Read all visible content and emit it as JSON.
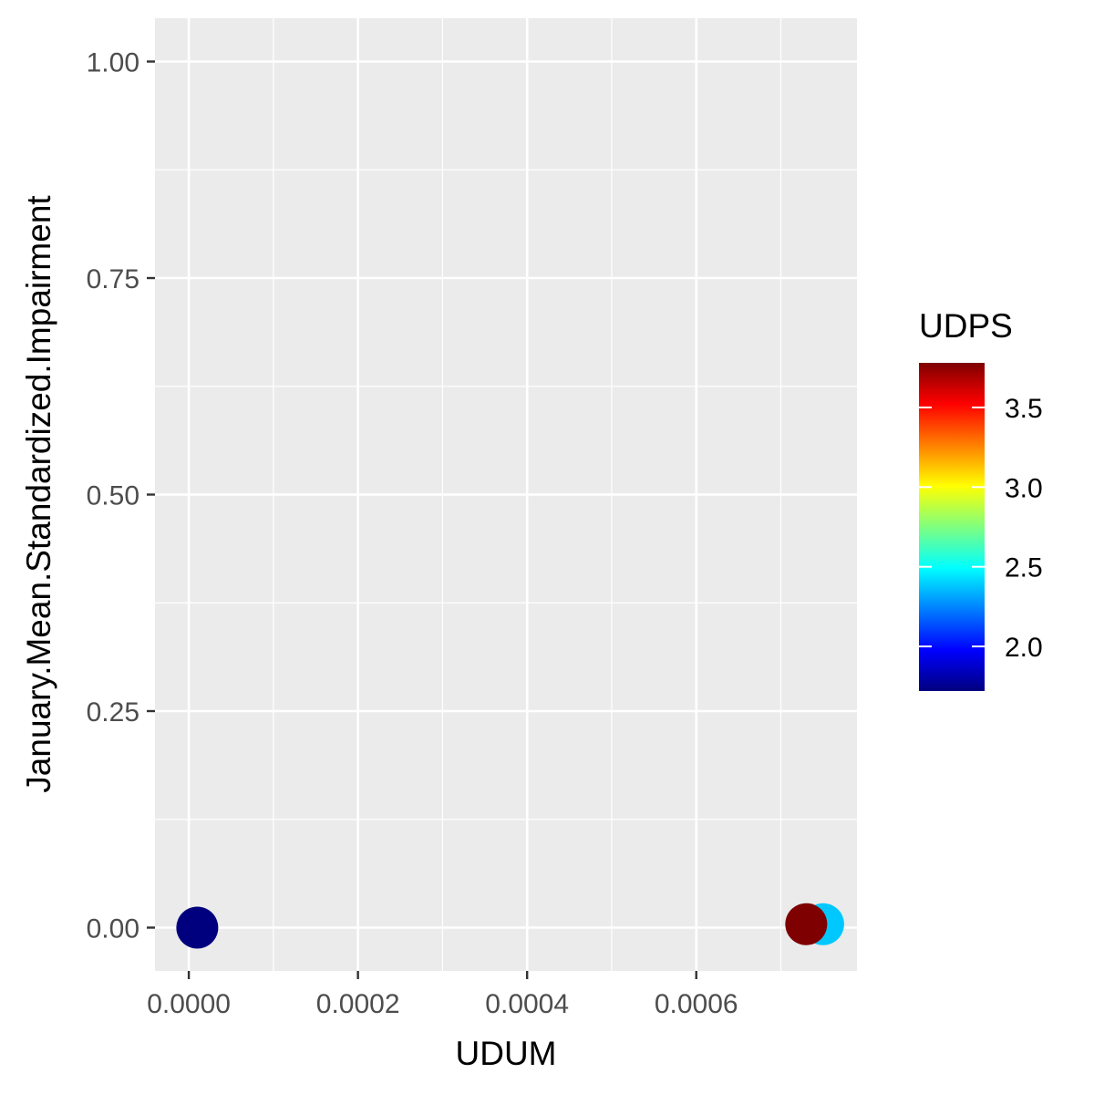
{
  "chart_data": {
    "type": "scatter",
    "xlabel": "UDUM",
    "ylabel": "January.Mean.Standardized.Impairment",
    "xlim": [
      -4e-05,
      0.00079
    ],
    "ylim": [
      -0.05,
      1.05
    ],
    "x_ticks": [
      0.0,
      0.0002,
      0.0004,
      0.0006
    ],
    "x_tick_labels": [
      "0.0000",
      "0.0002",
      "0.0004",
      "0.0006"
    ],
    "y_ticks": [
      0.0,
      0.25,
      0.5,
      0.75,
      1.0
    ],
    "y_tick_labels": [
      "0.00",
      "0.25",
      "0.50",
      "0.75",
      "1.00"
    ],
    "grid": true,
    "panel_background": "#ebebeb",
    "points": [
      {
        "x": 1e-05,
        "y": 0.0,
        "udps": 1.75,
        "color": "#00007f"
      },
      {
        "x": 0.00075,
        "y": 0.004,
        "udps": 2.4,
        "color": "#00c8ff"
      },
      {
        "x": 0.00073,
        "y": 0.004,
        "udps": 3.75,
        "color": "#7f0000"
      }
    ],
    "legend": {
      "title": "UDPS",
      "placement": "right",
      "range": [
        1.72,
        3.78
      ],
      "ticks": [
        2.0,
        2.5,
        3.0,
        3.5
      ],
      "tick_labels": [
        "2.0",
        "2.5",
        "3.0",
        "3.5"
      ],
      "colormap": [
        "#00007f",
        "#0000ff",
        "#007fff",
        "#00ffff",
        "#7fff7f",
        "#ffff00",
        "#ff7f00",
        "#ff0000",
        "#7f0000"
      ]
    }
  }
}
